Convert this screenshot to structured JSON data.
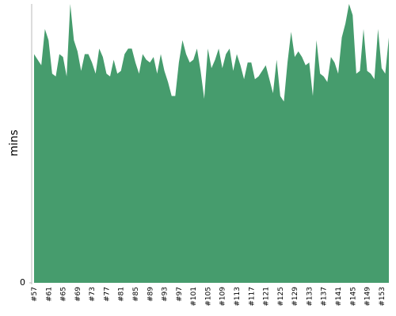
{
  "chart_data": {
    "type": "area",
    "y_label": "mins",
    "color": "#469c6d",
    "categories": [
      "#57",
      null,
      null,
      null,
      "#61",
      null,
      null,
      null,
      "#65",
      null,
      null,
      null,
      "#69",
      null,
      null,
      null,
      "#73",
      null,
      null,
      null,
      "#77",
      null,
      null,
      null,
      "#81",
      null,
      null,
      null,
      "#85",
      null,
      null,
      null,
      "#89",
      null,
      null,
      null,
      "#93",
      null,
      null,
      null,
      "#97",
      null,
      null,
      null,
      "#101",
      null,
      null,
      null,
      "#105",
      null,
      null,
      null,
      "#109",
      null,
      null,
      null,
      "#113",
      null,
      null,
      null,
      "#117",
      null,
      null,
      null,
      "#121",
      null,
      null,
      null,
      "#125",
      null,
      null,
      null,
      "#129",
      null,
      null,
      null,
      "#133",
      null,
      null,
      null,
      "#137",
      null,
      null,
      null,
      "#141",
      null,
      null,
      null,
      "#145",
      null,
      null,
      null,
      "#149",
      null,
      null,
      null,
      "#153",
      null,
      null
    ],
    "values": [
      8.2,
      8.0,
      7.8,
      9.1,
      8.7,
      7.5,
      7.4,
      8.2,
      8.1,
      7.4,
      10,
      8.7,
      8.3,
      7.6,
      8.2,
      8.2,
      7.9,
      7.5,
      8.4,
      8.1,
      7.5,
      7.4,
      8.0,
      7.5,
      7.6,
      8.2,
      8.4,
      8.4,
      7.9,
      7.5,
      8.2,
      8.0,
      7.9,
      8.1,
      7.5,
      8.2,
      7.6,
      7.2,
      6.7,
      6.7,
      7.9,
      8.7,
      8.2,
      7.9,
      8.0,
      8.4,
      7.6,
      6.6,
      8.4,
      7.7,
      8.0,
      8.4,
      7.7,
      8.2,
      8.4,
      7.6,
      8.2,
      7.8,
      7.3,
      7.9,
      7.9,
      7.3,
      7.4,
      7.6,
      7.8,
      7.3,
      6.8,
      8.0,
      6.7,
      6.5,
      7.9,
      9.0,
      8.1,
      8.3,
      8.1,
      7.8,
      7.9,
      6.7,
      8.7,
      7.5,
      7.4,
      7.2,
      8.1,
      7.9,
      7.5,
      8.8,
      9.3,
      10,
      9.6,
      7.5,
      7.6,
      9.1,
      7.6,
      7.5,
      7.3,
      9.1,
      7.7,
      7.5,
      8.8
    ],
    "ylim": [
      0,
      10
    ],
    "yticks": [
      0
    ]
  }
}
